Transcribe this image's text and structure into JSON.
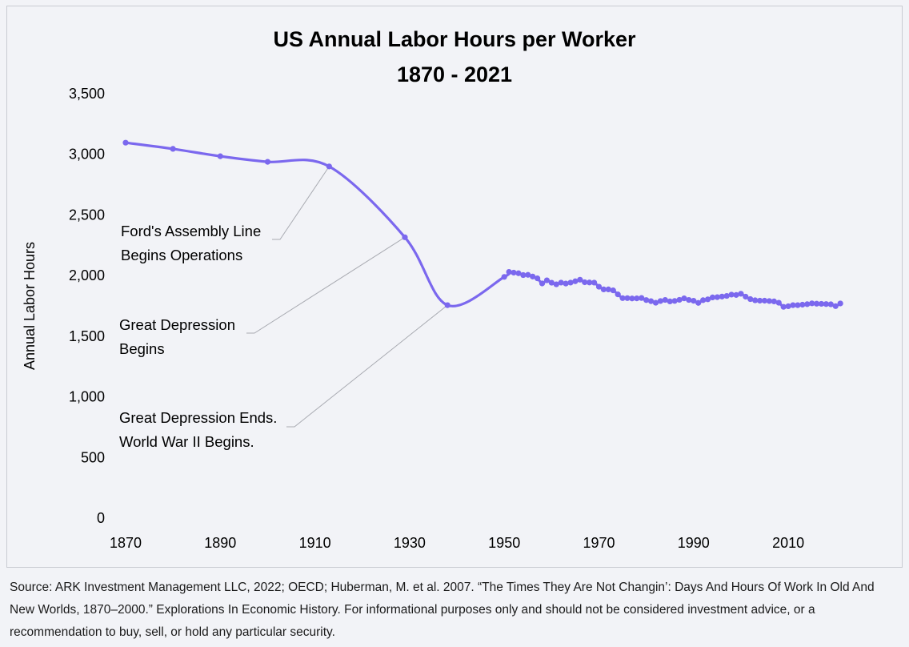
{
  "chart_data": {
    "type": "line",
    "title_lines": [
      "US Annual Labor Hours per Worker",
      "1870 - 2021"
    ],
    "xlabel": "",
    "ylabel": "Annual Labor Hours",
    "xlim": [
      1870,
      2023
    ],
    "ylim": [
      0,
      3500
    ],
    "x_ticks": [
      {
        "value": 1870,
        "label": "1870"
      },
      {
        "value": 1890,
        "label": "1890"
      },
      {
        "value": 1910,
        "label": "1910"
      },
      {
        "value": 1930,
        "label": "1930"
      },
      {
        "value": 1950,
        "label": "1950"
      },
      {
        "value": 1970,
        "label": "1970"
      },
      {
        "value": 1990,
        "label": "1990"
      },
      {
        "value": 2010,
        "label": "2010"
      }
    ],
    "y_ticks": [
      {
        "value": 0,
        "label": "0"
      },
      {
        "value": 500,
        "label": "500"
      },
      {
        "value": 1000,
        "label": "1,000"
      },
      {
        "value": 1500,
        "label": "1,500"
      },
      {
        "value": 2000,
        "label": "2,000"
      },
      {
        "value": 2500,
        "label": "2,500"
      },
      {
        "value": 3000,
        "label": "3,000"
      },
      {
        "value": 3500,
        "label": "3,500"
      }
    ],
    "grid": false,
    "legend": "none",
    "line_color": "#7b68ee",
    "series": [
      {
        "x": [
          1870,
          1880,
          1890,
          1900,
          1913,
          1929,
          1938,
          1950,
          1951,
          1952,
          1953,
          1954,
          1955,
          1956,
          1957,
          1958,
          1959,
          1960,
          1961,
          1962,
          1963,
          1964,
          1965,
          1966,
          1967,
          1968,
          1969,
          1970,
          1971,
          1972,
          1973,
          1974,
          1975,
          1976,
          1977,
          1978,
          1979,
          1980,
          1981,
          1982,
          1983,
          1984,
          1985,
          1986,
          1987,
          1988,
          1989,
          1990,
          1991,
          1992,
          1993,
          1994,
          1995,
          1996,
          1997,
          1998,
          1999,
          2000,
          2001,
          2002,
          2003,
          2004,
          2005,
          2006,
          2007,
          2008,
          2009,
          2010,
          2011,
          2012,
          2013,
          2014,
          2015,
          2016,
          2017,
          2018,
          2019,
          2020,
          2021
        ],
        "values": [
          3096,
          3045,
          2984,
          2938,
          2900,
          2316,
          1756,
          1989,
          2030,
          2024,
          2019,
          2004,
          2006,
          1992,
          1977,
          1935,
          1961,
          1941,
          1928,
          1942,
          1934,
          1942,
          1953,
          1966,
          1945,
          1943,
          1942,
          1908,
          1886,
          1886,
          1878,
          1845,
          1814,
          1814,
          1811,
          1812,
          1815,
          1798,
          1789,
          1776,
          1790,
          1799,
          1787,
          1791,
          1800,
          1812,
          1799,
          1792,
          1775,
          1797,
          1804,
          1820,
          1822,
          1827,
          1832,
          1843,
          1840,
          1850,
          1826,
          1806,
          1796,
          1793,
          1793,
          1790,
          1787,
          1776,
          1742,
          1747,
          1756,
          1756,
          1760,
          1764,
          1771,
          1768,
          1767,
          1765,
          1763,
          1748,
          1770
        ]
      }
    ],
    "annotations": [
      {
        "lines": [
          "Ford's Assembly Line",
          "Begins Operations"
        ],
        "target_x": 1913,
        "target_y": 2900
      },
      {
        "lines": [
          "Great Depression",
          "Begins"
        ],
        "target_x": 1929,
        "target_y": 2316
      },
      {
        "lines": [
          "Great Depression Ends.",
          "World War II Begins."
        ],
        "target_x": 1938,
        "target_y": 1756
      }
    ]
  },
  "footnote": "Source: ARK Investment Management LLC, 2022; OECD; Huberman, M. et al. 2007. “The Times They Are Not Changin’: Days And Hours Of Work In Old And New Worlds, 1870–2000.” Explorations In Economic History. For informational purposes only and should not be considered investment advice, or a recommendation to buy, sell, or hold any particular security."
}
